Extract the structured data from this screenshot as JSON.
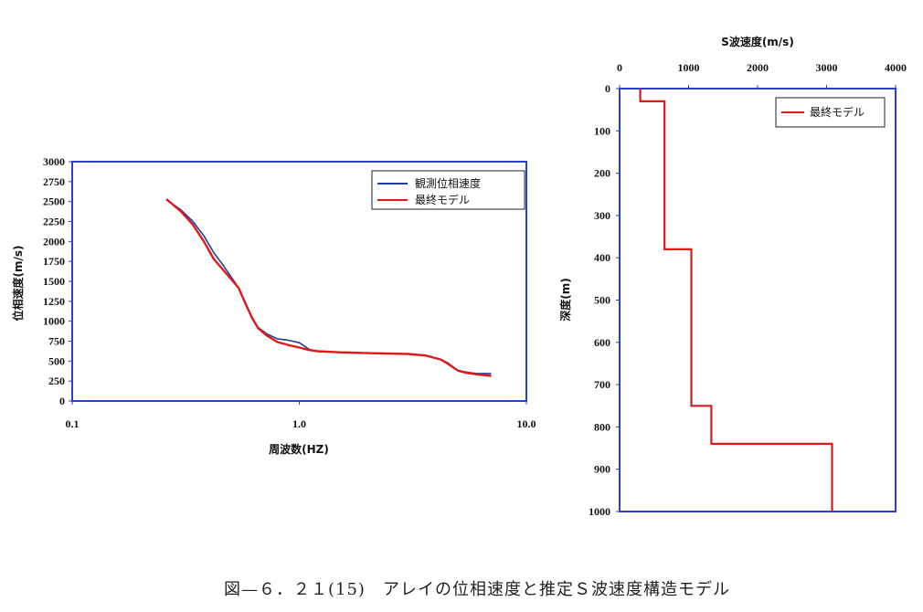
{
  "chart_data": [
    {
      "type": "line",
      "xscale": "log",
      "xlabel": "周波数(HZ)",
      "ylabel": "位相速度(m/s)",
      "xlim": [
        0.1,
        10.0
      ],
      "ylim": [
        0,
        3000
      ],
      "xticks": [
        "0.1",
        "1.0",
        "10.0"
      ],
      "yticks": [
        "0",
        "250",
        "500",
        "750",
        "1000",
        "1250",
        "1500",
        "1750",
        "2000",
        "2250",
        "2500",
        "2750",
        "3000"
      ],
      "legend_position": "top-right",
      "series": [
        {
          "name": "観測位相速度",
          "color": "#1f3fa0",
          "x": [
            0.26,
            0.3,
            0.34,
            0.38,
            0.42,
            0.46,
            0.5,
            0.54,
            0.58,
            0.62,
            0.66,
            0.72,
            0.8,
            0.9,
            1.0,
            1.05,
            1.1,
            1.2,
            1.5,
            2.0,
            3.0,
            3.6,
            4.2,
            4.5,
            5.0,
            5.5,
            6.0,
            7.0
          ],
          "y": [
            2520,
            2400,
            2250,
            2070,
            1860,
            1710,
            1560,
            1420,
            1220,
            1040,
            920,
            840,
            780,
            760,
            730,
            690,
            650,
            620,
            610,
            600,
            590,
            570,
            520,
            480,
            380,
            360,
            345,
            345
          ]
        },
        {
          "name": "最終モデル",
          "color": "#e01818",
          "x": [
            0.26,
            0.3,
            0.34,
            0.38,
            0.42,
            0.46,
            0.5,
            0.54,
            0.58,
            0.62,
            0.66,
            0.72,
            0.8,
            0.9,
            1.0,
            1.05,
            1.1,
            1.2,
            1.5,
            2.0,
            3.0,
            3.6,
            4.2,
            4.5,
            5.0,
            5.5,
            6.0,
            7.0
          ],
          "y": [
            2530,
            2380,
            2210,
            2000,
            1780,
            1650,
            1530,
            1420,
            1220,
            1040,
            910,
            820,
            740,
            700,
            670,
            655,
            640,
            625,
            610,
            600,
            590,
            570,
            520,
            470,
            380,
            350,
            335,
            315
          ]
        }
      ]
    },
    {
      "type": "line",
      "xlabel": "S波速度(m/s)",
      "ylabel": "深度(m)",
      "xlim": [
        0,
        4000
      ],
      "ylim": [
        0,
        1000
      ],
      "y_inverted": true,
      "x_axis_position": "top",
      "xticks": [
        "0",
        "1000",
        "2000",
        "3000",
        "4000"
      ],
      "yticks": [
        "0",
        "100",
        "200",
        "300",
        "400",
        "500",
        "600",
        "700",
        "800",
        "900",
        "1000"
      ],
      "legend_position": "top-right",
      "series": [
        {
          "name": "最終モデル",
          "color": "#e01818",
          "step_profile": true,
          "x": [
            300,
            300,
            650,
            650,
            1040,
            1040,
            1330,
            1330,
            3080,
            3080
          ],
          "y": [
            0,
            30,
            30,
            380,
            380,
            750,
            750,
            840,
            840,
            1000
          ]
        }
      ]
    }
  ],
  "caption": "図—６．２１(15)　アレイの位相速度と推定Ｓ波速度構造モデル"
}
